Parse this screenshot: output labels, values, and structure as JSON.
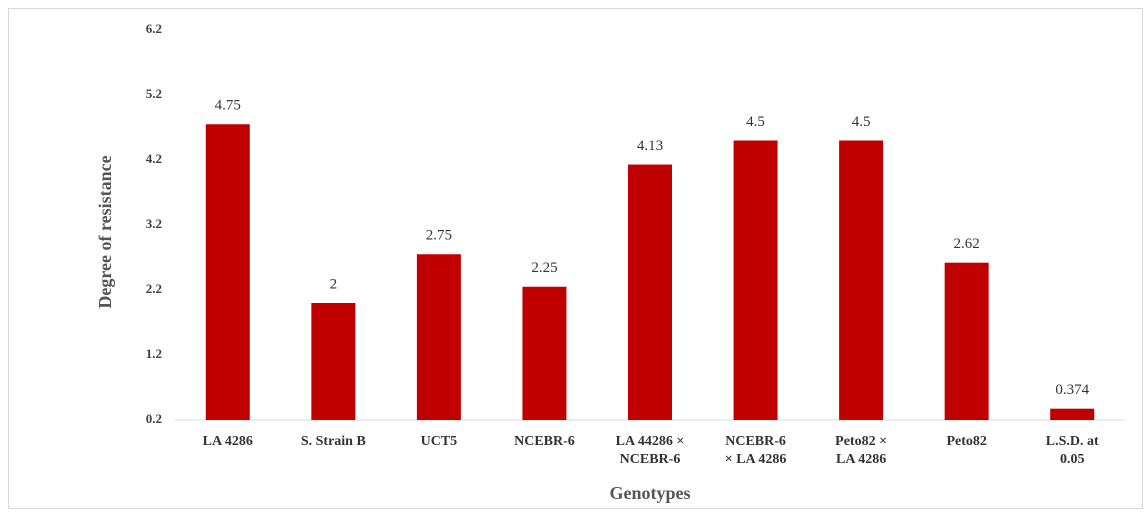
{
  "chart_data": {
    "type": "bar",
    "xlabel": "Genotypes",
    "ylabel": "Degree of resistance",
    "categories": [
      "LA 4286",
      "S. Strain B",
      "UCT5",
      "NCEBR-6",
      "LA 44286 ×\nNCEBR-6",
      "NCEBR-6\n× LA 4286",
      "Peto82 ×\nLA 4286",
      "Peto82",
      "L.S.D. at\n0.05"
    ],
    "values": [
      4.75,
      2,
      2.75,
      2.25,
      4.13,
      4.5,
      4.5,
      2.62,
      0.374
    ],
    "color": "#c00000",
    "ylim": [
      0.2,
      6.2
    ],
    "yticks": [
      0.2,
      1.2,
      2.2,
      3.2,
      4.2,
      5.2,
      6.2
    ],
    "grid": false
  }
}
